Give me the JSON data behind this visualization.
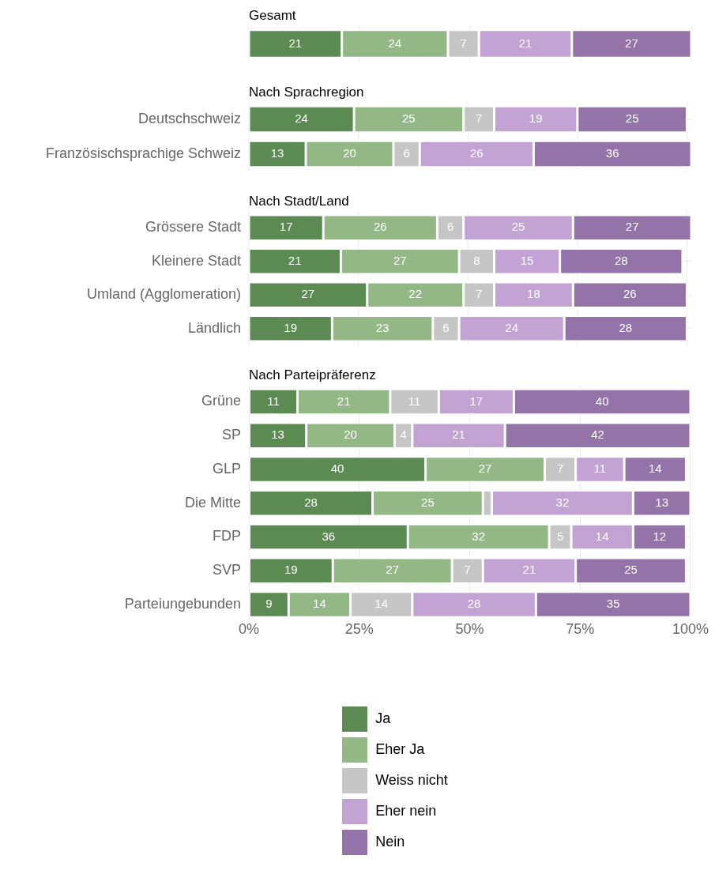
{
  "chart_data": [
    {
      "type": "bar",
      "title": "Gesamt",
      "orientation": "horizontal",
      "stacked": true,
      "categories": [
        null
      ],
      "xlim": [
        0,
        100
      ],
      "xticks": [
        0,
        25,
        50,
        75,
        100
      ],
      "tick_labels": "y",
      "grid": true,
      "data_labels": true,
      "legend": false,
      "series": [
        {
          "color": "#5b8a52",
          "values": [
            21
          ]
        },
        {
          "color": "#93b886",
          "values": [
            24
          ]
        },
        {
          "color": "#c6c6c6",
          "values": [
            7
          ]
        },
        {
          "color": "#c2a3d4",
          "values": [
            21
          ]
        },
        {
          "color": "#9373a8",
          "values": [
            27
          ]
        }
      ]
    },
    {
      "type": "bar",
      "title": "Nach Sprachregion",
      "orientation": "horizontal",
      "stacked": true,
      "categories": [
        "Deutschschweiz",
        "Französischsprachige Schweiz"
      ],
      "xlim": [
        0,
        101
      ],
      "xticks": [
        0,
        25,
        50,
        75,
        100
      ],
      "tick_labels": "y",
      "grid": true,
      "data_labels": true,
      "legend": false,
      "series": [
        {
          "color": "#5b8a52",
          "values": [
            24,
            13
          ]
        },
        {
          "color": "#93b886",
          "values": [
            25,
            20
          ]
        },
        {
          "color": "#c6c6c6",
          "values": [
            7,
            6
          ]
        },
        {
          "color": "#c2a3d4",
          "values": [
            19,
            26
          ]
        },
        {
          "color": "#9373a8",
          "values": [
            25,
            36
          ]
        }
      ]
    },
    {
      "type": "bar",
      "title": "Nach Stadt/Land",
      "orientation": "horizontal",
      "stacked": true,
      "categories": [
        "Grössere Stadt",
        "Kleinere Stadt",
        "Umland (Agglomeration)",
        "Ländlich"
      ],
      "xlim": [
        0,
        101
      ],
      "xticks": [
        0,
        25,
        50,
        75,
        100
      ],
      "tick_labels": "y",
      "grid": true,
      "data_labels": true,
      "legend": false,
      "series": [
        {
          "color": "#5b8a52",
          "values": [
            17,
            21,
            27,
            19
          ]
        },
        {
          "color": "#93b886",
          "values": [
            26,
            27,
            22,
            23
          ]
        },
        {
          "color": "#c6c6c6",
          "values": [
            6,
            8,
            7,
            6
          ]
        },
        {
          "color": "#c2a3d4",
          "values": [
            25,
            15,
            18,
            24
          ]
        },
        {
          "color": "#9373a8",
          "values": [
            27,
            28,
            26,
            28
          ]
        }
      ]
    },
    {
      "type": "bar",
      "title": "Nach Parteipräferenz",
      "orientation": "horizontal",
      "stacked": true,
      "categories": [
        "Grüne",
        "SP",
        "GLP",
        "Die Mitte",
        "FDP",
        "SVP",
        "Parteiungebunden"
      ],
      "xlim": [
        0,
        100
      ],
      "xticks": [
        {
          "value": 0,
          "label": "0%"
        },
        {
          "value": 25,
          "label": "25%"
        },
        {
          "value": 50,
          "label": "50%"
        },
        {
          "value": 75,
          "label": "75%"
        },
        {
          "value": 100,
          "label": "100%"
        }
      ],
      "grid": true,
      "legend": "bottom",
      "series": [
        {
          "name": "Ja",
          "color": "#5b8a52",
          "values": [
            11,
            13,
            40,
            28,
            36,
            19,
            9
          ],
          "value_labels": [
            "11",
            "13",
            "40",
            "28",
            "36",
            "19",
            "9"
          ]
        },
        {
          "name": "Eher Ja",
          "color": "#93b886",
          "values": [
            21,
            20,
            27,
            25,
            32,
            27,
            14
          ],
          "value_labels": [
            "21",
            "20",
            "27",
            "25",
            "32",
            "27",
            "14"
          ]
        },
        {
          "name": "Weiss nicht",
          "color": "#c6c6c6",
          "values": [
            11,
            4,
            7,
            2,
            5,
            7,
            14
          ],
          "value_labels": [
            "11",
            "4",
            "7",
            null,
            "5",
            "7",
            "14"
          ]
        },
        {
          "name": "Eher nein",
          "color": "#c2a3d4",
          "values": [
            17,
            21,
            11,
            32,
            14,
            21,
            28
          ],
          "value_labels": [
            "17",
            "21",
            "11",
            "32",
            "14",
            "21",
            "28"
          ]
        },
        {
          "name": "Nein",
          "color": "#9373a8",
          "values": [
            40,
            42,
            14,
            13,
            12,
            25,
            35
          ],
          "value_labels": [
            "40",
            "42",
            "14",
            "13",
            "12",
            "25",
            "35"
          ]
        }
      ]
    }
  ]
}
